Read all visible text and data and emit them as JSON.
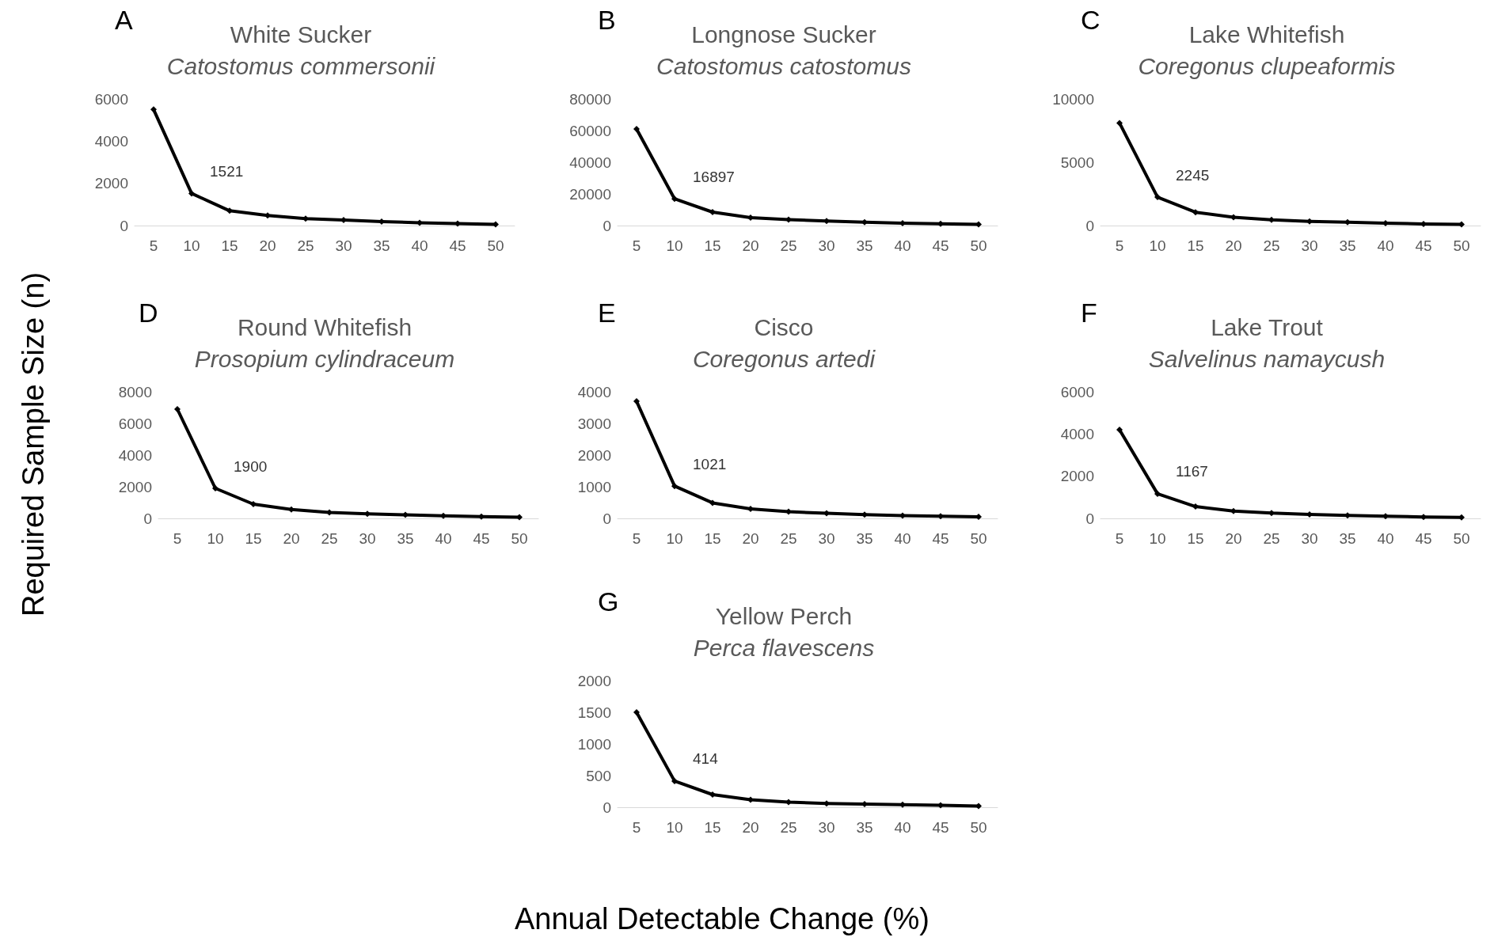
{
  "chart_data": [
    {
      "type": "line",
      "title": "White Sucker",
      "subtitle": "Catostomus commersonii",
      "annotations": [
        "A",
        {
          "text": "1521",
          "x": "10",
          "y": 1521
        }
      ],
      "categories": [
        "5",
        "10",
        "15",
        "20",
        "25",
        "30",
        "35",
        "40",
        "45",
        "50"
      ],
      "ylim": [
        0,
        6000
      ],
      "yticks": [
        0,
        2000,
        4000,
        6000
      ],
      "marker": "diamond",
      "line_style": "solid",
      "grid": false,
      "series": [
        {
          "color": "#000000",
          "values": [
            5500,
            1521,
            700,
            480,
            330,
            260,
            190,
            130,
            90,
            60
          ]
        }
      ]
    },
    {
      "type": "line",
      "title": "Longnose Sucker",
      "subtitle": "Catostomus catostomus",
      "annotations": [
        "B",
        {
          "text": "16897",
          "x": "10",
          "y": 16897
        }
      ],
      "categories": [
        "5",
        "10",
        "15",
        "20",
        "25",
        "30",
        "35",
        "40",
        "45",
        "50"
      ],
      "ylim": [
        0,
        80000
      ],
      "yticks": [
        0,
        20000,
        40000,
        60000,
        80000
      ],
      "marker": "diamond",
      "line_style": "solid",
      "grid": false,
      "series": [
        {
          "color": "#000000",
          "values": [
            61000,
            16897,
            8500,
            5000,
            3800,
            2900,
            2100,
            1500,
            1100,
            800
          ]
        }
      ]
    },
    {
      "type": "line",
      "title": "Lake Whitefish",
      "subtitle": "Coregonus clupeaformis",
      "annotations": [
        "C",
        {
          "text": "2245",
          "x": "10",
          "y": 2245
        }
      ],
      "categories": [
        "5",
        "10",
        "15",
        "20",
        "25",
        "30",
        "35",
        "40",
        "45",
        "50"
      ],
      "ylim": [
        0,
        10000
      ],
      "yticks": [
        0,
        5000,
        10000
      ],
      "marker": "diamond",
      "line_style": "solid",
      "grid": false,
      "series": [
        {
          "color": "#000000",
          "values": [
            8100,
            2245,
            1050,
            650,
            450,
            330,
            260,
            190,
            130,
            90
          ]
        }
      ]
    },
    {
      "type": "line",
      "title": "Round Whitefish",
      "subtitle": "Prosopium cylindraceum",
      "ylabel": "Required Sample Size (n)",
      "annotations": [
        "D",
        {
          "text": "1900",
          "x": "10",
          "y": 1900
        }
      ],
      "categories": [
        "5",
        "10",
        "15",
        "20",
        "25",
        "30",
        "35",
        "40",
        "45",
        "50"
      ],
      "ylim": [
        0,
        8000
      ],
      "yticks": [
        0,
        2000,
        4000,
        6000,
        8000
      ],
      "marker": "diamond",
      "line_style": "solid",
      "grid": false,
      "series": [
        {
          "color": "#000000",
          "values": [
            6900,
            1900,
            900,
            560,
            380,
            290,
            220,
            160,
            110,
            80
          ]
        }
      ]
    },
    {
      "type": "line",
      "title": "Cisco",
      "subtitle": "Coregonus artedi",
      "annotations": [
        "E",
        {
          "text": "1021",
          "x": "10",
          "y": 1021
        }
      ],
      "categories": [
        "5",
        "10",
        "15",
        "20",
        "25",
        "30",
        "35",
        "40",
        "45",
        "50"
      ],
      "ylim": [
        0,
        4000
      ],
      "yticks": [
        0,
        1000,
        2000,
        3000,
        4000
      ],
      "marker": "diamond",
      "line_style": "solid",
      "grid": false,
      "series": [
        {
          "color": "#000000",
          "values": [
            3700,
            1021,
            490,
            300,
            210,
            160,
            120,
            90,
            70,
            50
          ]
        }
      ]
    },
    {
      "type": "line",
      "title": "Lake Trout",
      "subtitle": "Salvelinus namaycush",
      "annotations": [
        "F",
        {
          "text": "1167",
          "x": "10",
          "y": 1167
        }
      ],
      "categories": [
        "5",
        "10",
        "15",
        "20",
        "25",
        "30",
        "35",
        "40",
        "45",
        "50"
      ],
      "ylim": [
        0,
        6000
      ],
      "yticks": [
        0,
        2000,
        4000,
        6000
      ],
      "marker": "diamond",
      "line_style": "solid",
      "grid": false,
      "series": [
        {
          "color": "#000000",
          "values": [
            4200,
            1167,
            560,
            350,
            250,
            190,
            140,
            100,
            70,
            50
          ]
        }
      ]
    },
    {
      "type": "line",
      "title": "Yellow Perch",
      "subtitle": "Perca flavescens",
      "xlabel": "Annual Detectable Change (%)",
      "annotations": [
        "G",
        {
          "text": "414",
          "x": "10",
          "y": 414
        }
      ],
      "categories": [
        "5",
        "10",
        "15",
        "20",
        "25",
        "30",
        "35",
        "40",
        "45",
        "50"
      ],
      "ylim": [
        0,
        2000
      ],
      "yticks": [
        0,
        500,
        1000,
        1500,
        2000
      ],
      "marker": "diamond",
      "line_style": "solid",
      "grid": false,
      "series": [
        {
          "color": "#000000",
          "values": [
            1500,
            414,
            200,
            120,
            80,
            60,
            50,
            40,
            30,
            20
          ]
        }
      ]
    }
  ]
}
